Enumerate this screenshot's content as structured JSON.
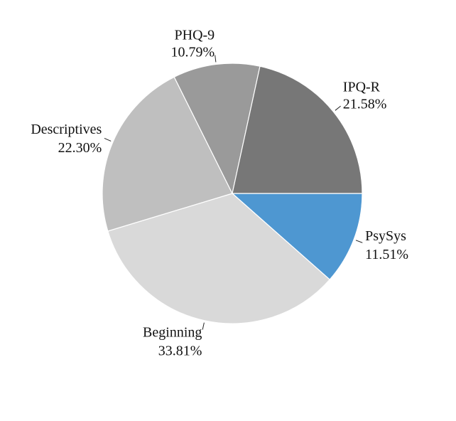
{
  "chart_data": {
    "type": "pie",
    "title": "",
    "categories": [
      "PsySys",
      "Beginning",
      "Descriptives",
      "PHQ-9",
      "IPQ-R"
    ],
    "values": [
      11.51,
      33.81,
      22.3,
      10.79,
      21.58
    ],
    "value_labels": [
      "11.51%",
      "33.81%",
      "22.30%",
      "10.79%",
      "21.58%"
    ],
    "colors": [
      "#4e97d1",
      "#d9d9d9",
      "#bfbfbf",
      "#9a9a9a",
      "#777777"
    ],
    "legend": "none"
  }
}
